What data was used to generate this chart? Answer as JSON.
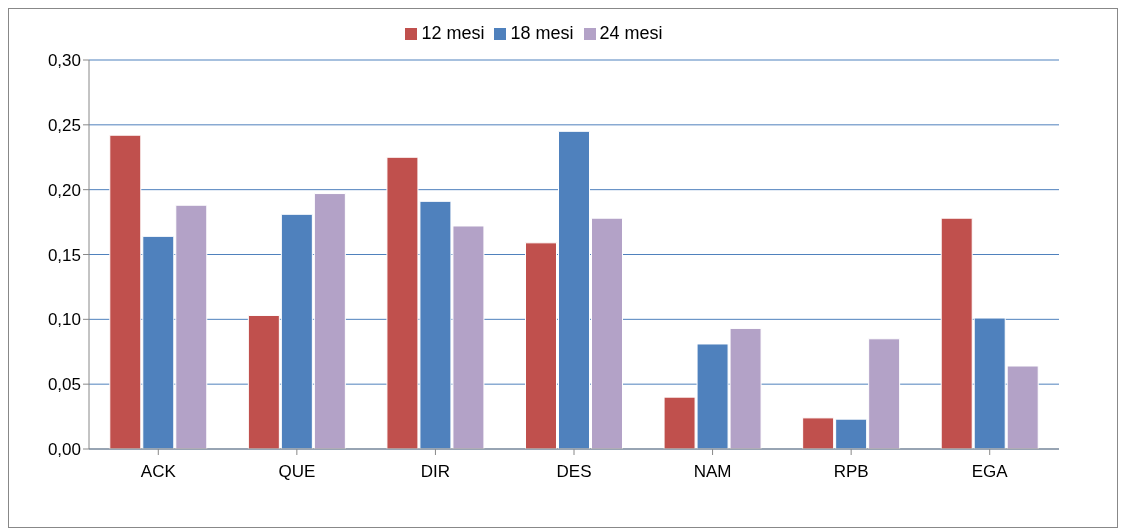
{
  "chart_data": {
    "type": "bar",
    "categories": [
      "ACK",
      "QUE",
      "DIR",
      "DES",
      "NAM",
      "RPB",
      "EGA"
    ],
    "series": [
      {
        "name": "12 mesi",
        "color": "#c0504d",
        "values": [
          0.242,
          0.103,
          0.225,
          0.159,
          0.04,
          0.024,
          0.178
        ]
      },
      {
        "name": "18 mesi",
        "color": "#4f81bd",
        "values": [
          0.164,
          0.181,
          0.191,
          0.245,
          0.081,
          0.023,
          0.101
        ]
      },
      {
        "name": "24 mesi",
        "color": "#b3a2c7",
        "values": [
          0.188,
          0.197,
          0.172,
          0.178,
          0.093,
          0.085,
          0.064
        ]
      }
    ],
    "ylim": [
      0,
      0.3
    ],
    "yticks": [
      {
        "value": 0,
        "label": "0,00"
      },
      {
        "value": 0.05,
        "label": "0,05"
      },
      {
        "value": 0.1,
        "label": "0,10"
      },
      {
        "value": 0.15,
        "label": "0,15"
      },
      {
        "value": 0.2,
        "label": "0,20"
      },
      {
        "value": 0.25,
        "label": "0,25"
      },
      {
        "value": 0.3,
        "label": "0,30"
      }
    ],
    "grid": "y",
    "legend": "top"
  }
}
